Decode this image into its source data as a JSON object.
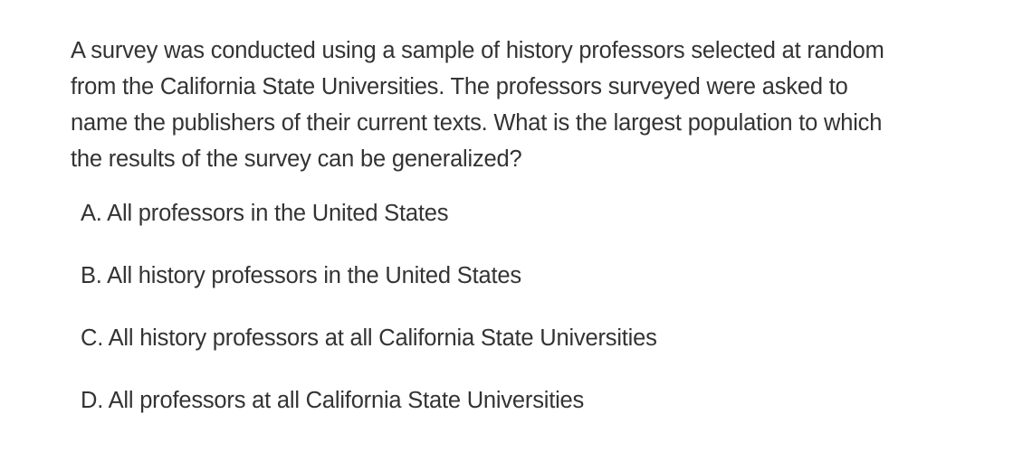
{
  "question": {
    "lines": [
      "A survey was conducted using a sample of history professors selected at random",
      "from the California State Universities. The professors surveyed were asked to",
      "name the publishers of their current texts. What is the largest population to which",
      "the results of the survey can be generalized?"
    ]
  },
  "options": [
    {
      "text": "A. All professors in the United States"
    },
    {
      "text": "B. All history professors in the United States"
    },
    {
      "text": "C. All history professors at all California State Universities"
    },
    {
      "text": "D. All professors at all California State Universities"
    }
  ],
  "colors": {
    "text": "#333333",
    "background": "#ffffff"
  }
}
